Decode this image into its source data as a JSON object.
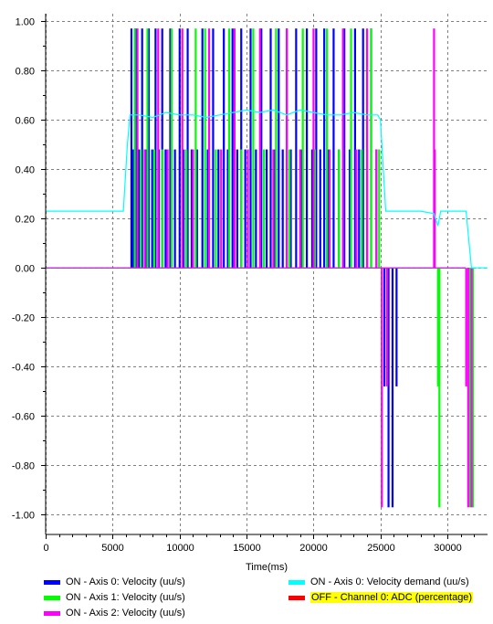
{
  "chart_data": {
    "type": "line",
    "xlabel": "Time(ms)",
    "ylabel": "",
    "xlim": [
      0,
      33000
    ],
    "ylim": [
      -1.08,
      1.03
    ],
    "x_ticks": [
      0,
      5000,
      10000,
      15000,
      20000,
      25000,
      30000
    ],
    "x_tick_labels": [
      "0",
      "5000",
      "10000",
      "15000",
      "20000",
      "25000",
      "30000"
    ],
    "y_ticks": [
      1.0,
      0.8,
      0.6,
      0.4,
      0.2,
      0.0,
      -0.2,
      -0.4,
      -0.6,
      -0.8,
      -1.0
    ],
    "y_tick_labels": [
      "1.00",
      "0.80",
      "0.60",
      "0.40",
      "0.20",
      "0.00",
      "-0.20",
      "-0.40",
      "-0.60",
      "-0.80",
      "-1.00"
    ],
    "grid": true,
    "legend_position": "bottom",
    "series": [
      {
        "name": "Axis 0: Velocity (uu/s)",
        "state": "ON",
        "color": "#0000ff",
        "pulses": [
          {
            "x": 6400,
            "y": 0.97
          },
          {
            "x": 6550,
            "y": 0.48
          },
          {
            "x": 6700,
            "y": 0.97
          },
          {
            "x": 6950,
            "y": 0.48
          },
          {
            "x": 7200,
            "y": 0.97
          },
          {
            "x": 7450,
            "y": 0.48
          },
          {
            "x": 7700,
            "y": 0.97
          },
          {
            "x": 7950,
            "y": 0.48
          },
          {
            "x": 8200,
            "y": 0.97
          },
          {
            "x": 8450,
            "y": 0.48
          },
          {
            "x": 8700,
            "y": 0.97
          },
          {
            "x": 8950,
            "y": 0.48
          },
          {
            "x": 9300,
            "y": 0.97
          },
          {
            "x": 9650,
            "y": 0.48
          },
          {
            "x": 10000,
            "y": 0.97
          },
          {
            "x": 10300,
            "y": 0.48
          },
          {
            "x": 10600,
            "y": 0.97
          },
          {
            "x": 10900,
            "y": 0.48
          },
          {
            "x": 11300,
            "y": 0.48
          },
          {
            "x": 11700,
            "y": 0.97
          },
          {
            "x": 12100,
            "y": 0.48
          },
          {
            "x": 12500,
            "y": 0.97
          },
          {
            "x": 12900,
            "y": 0.48
          },
          {
            "x": 13300,
            "y": 0.97
          },
          {
            "x": 13600,
            "y": 0.48
          },
          {
            "x": 13950,
            "y": 0.97
          },
          {
            "x": 14300,
            "y": 0.48
          },
          {
            "x": 14600,
            "y": 0.97
          },
          {
            "x": 14900,
            "y": 0.48
          },
          {
            "x": 15300,
            "y": 0.97
          },
          {
            "x": 15700,
            "y": 0.48
          },
          {
            "x": 16100,
            "y": 0.97
          },
          {
            "x": 16500,
            "y": 0.48
          },
          {
            "x": 16800,
            "y": 0.97
          },
          {
            "x": 17100,
            "y": 0.48
          },
          {
            "x": 17400,
            "y": 0.97
          },
          {
            "x": 17700,
            "y": 0.48
          },
          {
            "x": 18000,
            "y": 0.97
          },
          {
            "x": 18300,
            "y": 0.48
          },
          {
            "x": 18700,
            "y": 0.97
          },
          {
            "x": 19100,
            "y": 0.48
          },
          {
            "x": 19500,
            "y": 0.97
          },
          {
            "x": 19900,
            "y": 0.48
          },
          {
            "x": 20200,
            "y": 0.97
          },
          {
            "x": 20500,
            "y": 0.48
          },
          {
            "x": 20800,
            "y": 0.97
          },
          {
            "x": 21100,
            "y": 0.48
          },
          {
            "x": 21500,
            "y": 0.97
          },
          {
            "x": 21900,
            "y": 0.48
          },
          {
            "x": 22300,
            "y": 0.97
          },
          {
            "x": 22700,
            "y": 0.48
          },
          {
            "x": 23100,
            "y": 0.97
          },
          {
            "x": 23400,
            "y": 0.48
          },
          {
            "x": 23700,
            "y": 0.97
          },
          {
            "x": 24000,
            "y": 0.48
          },
          {
            "x": 24300,
            "y": 0.97
          },
          {
            "x": 24700,
            "y": 0.48
          },
          {
            "x": 25300,
            "y": -0.48
          },
          {
            "x": 25600,
            "y": -0.97
          },
          {
            "x": 25900,
            "y": -0.97
          },
          {
            "x": 26200,
            "y": -0.48
          }
        ]
      },
      {
        "name": "Axis 1: Velocity (uu/s)",
        "state": "ON",
        "color": "#00ff00",
        "pulses": [
          {
            "x": 6650,
            "y": 0.97
          },
          {
            "x": 7100,
            "y": 0.48
          },
          {
            "x": 7600,
            "y": 0.97
          },
          {
            "x": 8100,
            "y": 0.48
          },
          {
            "x": 8700,
            "y": 0.48
          },
          {
            "x": 9400,
            "y": 0.97
          },
          {
            "x": 10500,
            "y": 0.48
          },
          {
            "x": 11200,
            "y": 0.97
          },
          {
            "x": 11900,
            "y": 0.97
          },
          {
            "x": 12700,
            "y": 0.48
          },
          {
            "x": 13700,
            "y": 0.97
          },
          {
            "x": 14600,
            "y": 0.48
          },
          {
            "x": 15500,
            "y": 0.97
          },
          {
            "x": 16300,
            "y": 0.48
          },
          {
            "x": 17200,
            "y": 0.97
          },
          {
            "x": 18200,
            "y": 0.48
          },
          {
            "x": 19200,
            "y": 0.97
          },
          {
            "x": 20100,
            "y": 0.48
          },
          {
            "x": 21000,
            "y": 0.97
          },
          {
            "x": 21900,
            "y": 0.48
          },
          {
            "x": 22800,
            "y": 0.97
          },
          {
            "x": 23600,
            "y": 0.48
          },
          {
            "x": 24300,
            "y": 0.97
          },
          {
            "x": 24900,
            "y": 0.48
          },
          {
            "x": 29300,
            "y": -0.48
          },
          {
            "x": 29400,
            "y": -0.97
          },
          {
            "x": 31700,
            "y": -0.97
          },
          {
            "x": 31900,
            "y": -0.97
          }
        ]
      },
      {
        "name": "Axis 2: Velocity (uu/s)",
        "state": "ON",
        "color": "#ff00ff",
        "pulses": [
          {
            "x": 6850,
            "y": 0.97
          },
          {
            "x": 7400,
            "y": 0.48
          },
          {
            "x": 8400,
            "y": 0.97
          },
          {
            "x": 9100,
            "y": 0.48
          },
          {
            "x": 10200,
            "y": 0.97
          },
          {
            "x": 11000,
            "y": 0.48
          },
          {
            "x": 12200,
            "y": 0.97
          },
          {
            "x": 13100,
            "y": 0.48
          },
          {
            "x": 14100,
            "y": 0.97
          },
          {
            "x": 15100,
            "y": 0.48
          },
          {
            "x": 16000,
            "y": 0.97
          },
          {
            "x": 17000,
            "y": 0.48
          },
          {
            "x": 18000,
            "y": 0.97
          },
          {
            "x": 19000,
            "y": 0.48
          },
          {
            "x": 20000,
            "y": 0.97
          },
          {
            "x": 21200,
            "y": 0.48
          },
          {
            "x": 22200,
            "y": 0.97
          },
          {
            "x": 23200,
            "y": 0.48
          },
          {
            "x": 24000,
            "y": 0.97
          },
          {
            "x": 24700,
            "y": 0.48
          },
          {
            "x": 25100,
            "y": -0.97
          },
          {
            "x": 25500,
            "y": -0.48
          },
          {
            "x": 29000,
            "y": 0.97
          },
          {
            "x": 29050,
            "y": 0.48
          },
          {
            "x": 31400,
            "y": -0.48
          },
          {
            "x": 31550,
            "y": -0.97
          },
          {
            "x": 31800,
            "y": -0.97
          }
        ]
      },
      {
        "name": "Axis 0: Velocity demand (uu/s)",
        "state": "ON",
        "color": "#00ffff",
        "x": [
          0,
          5800,
          6100,
          6300,
          7000,
          8000,
          9000,
          10000,
          11000,
          12000,
          13000,
          14000,
          15000,
          16000,
          17000,
          18000,
          19000,
          20000,
          21000,
          22000,
          23000,
          24000,
          24800,
          25000,
          25400,
          26000,
          27000,
          28000,
          29000,
          29300,
          29500,
          30000,
          31000,
          31400,
          31800,
          33000
        ],
        "y": [
          0.23,
          0.23,
          0.5,
          0.62,
          0.62,
          0.61,
          0.63,
          0.62,
          0.62,
          0.61,
          0.62,
          0.63,
          0.64,
          0.63,
          0.64,
          0.62,
          0.64,
          0.63,
          0.62,
          0.62,
          0.63,
          0.62,
          0.62,
          0.6,
          0.23,
          0.23,
          0.23,
          0.23,
          0.22,
          0.17,
          0.23,
          0.23,
          0.23,
          0.23,
          0.0,
          0.0
        ]
      },
      {
        "name": "Channel 0: ADC (percentage)",
        "state": "OFF",
        "color": "#ff0000",
        "x": [],
        "y": []
      }
    ]
  },
  "legend": {
    "items": [
      {
        "state": "ON",
        "sep": " - ",
        "label": "Axis 0: Velocity (uu/s)",
        "color": "#0000ff"
      },
      {
        "state": "ON",
        "sep": " - ",
        "label": "Axis 1: Velocity (uu/s)",
        "color": "#00ff00"
      },
      {
        "state": "ON",
        "sep": " - ",
        "label": "Axis 2: Velocity (uu/s)",
        "color": "#ff00ff"
      },
      {
        "state": "ON",
        "sep": " - ",
        "label": "Axis 0: Velocity demand (uu/s)",
        "color": "#00ffff"
      },
      {
        "state": "OFF",
        "sep": " - ",
        "label": "Channel 0: ADC (percentage)",
        "color": "#ff0000"
      }
    ]
  }
}
